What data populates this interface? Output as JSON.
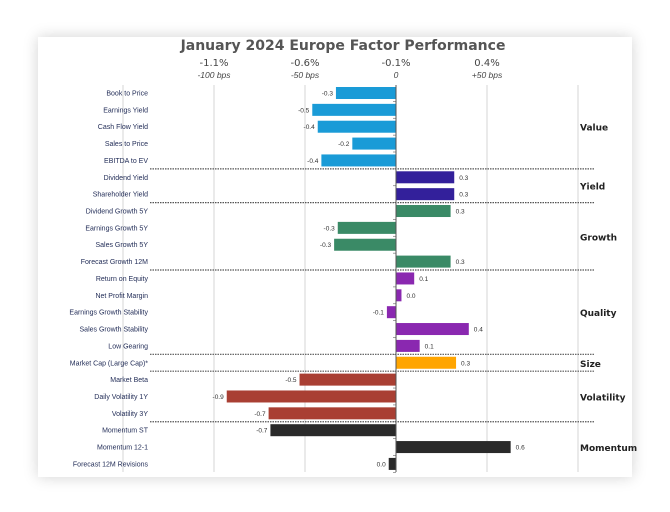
{
  "chart_data": {
    "type": "bar",
    "orientation": "horizontal",
    "title": "January 2024 Europe Factor Performance",
    "top_axis_ticks": [
      {
        "label": "-1.1%",
        "sublabel": "-100 bps",
        "value": -1.0
      },
      {
        "label": "-0.6%",
        "sublabel": "-50 bps",
        "value": -0.5
      },
      {
        "label": "-0.1%",
        "sublabel": "0",
        "value": 0
      },
      {
        "label": "0.4%",
        "sublabel": "+50 bps",
        "value": 0.5
      }
    ],
    "xlim": [
      -1.0,
      1.0
    ],
    "grid": true,
    "groups": [
      {
        "name": "Value",
        "color": "#1a9bd7",
        "rows": [
          {
            "label": "Book to Price",
            "value": -0.33,
            "value_label": "-0.3"
          },
          {
            "label": "Earnings Yield",
            "value": -0.46,
            "value_label": "-0.5"
          },
          {
            "label": "Cash Flow Yield",
            "value": -0.43,
            "value_label": "-0.4"
          },
          {
            "label": "Sales to Price",
            "value": -0.24,
            "value_label": "-0.2"
          },
          {
            "label": "EBITDA to EV",
            "value": -0.41,
            "value_label": "-0.4"
          }
        ]
      },
      {
        "name": "Yield",
        "color": "#33209b",
        "rows": [
          {
            "label": "Dividend Yield",
            "value": 0.32,
            "value_label": "0.3"
          },
          {
            "label": "Shareholder Yield",
            "value": 0.32,
            "value_label": "0.3"
          }
        ]
      },
      {
        "name": "Growth",
        "color": "#3a8a66",
        "rows": [
          {
            "label": "Dividend Growth 5Y",
            "value": 0.3,
            "value_label": "0.3"
          },
          {
            "label": "Earnings Growth 5Y",
            "value": -0.32,
            "value_label": "-0.3"
          },
          {
            "label": "Sales Growth 5Y",
            "value": -0.34,
            "value_label": "-0.3"
          },
          {
            "label": "Forecast Growth 12M",
            "value": 0.3,
            "value_label": "0.3"
          }
        ]
      },
      {
        "name": "Quality",
        "color": "#8a28b0",
        "rows": [
          {
            "label": "Return on Equity",
            "value": 0.1,
            "value_label": "0.1"
          },
          {
            "label": "Net Profit Margin",
            "value": 0.03,
            "value_label": "0.0"
          },
          {
            "label": "Earnings Growth Stability",
            "value": -0.05,
            "value_label": "-0.1"
          },
          {
            "label": "Sales Growth Stability",
            "value": 0.4,
            "value_label": "0.4"
          },
          {
            "label": "Low Gearing",
            "value": 0.13,
            "value_label": "0.1"
          }
        ]
      },
      {
        "name": "Size",
        "color": "#ffa500",
        "rows": [
          {
            "label": "Market Cap (Large Cap)*",
            "value": 0.33,
            "value_label": "0.3"
          }
        ]
      },
      {
        "name": "Volatility",
        "color": "#a93f33",
        "rows": [
          {
            "label": "Market Beta",
            "value": -0.53,
            "value_label": "-0.5"
          },
          {
            "label": "Daily Volatility 1Y",
            "value": -0.93,
            "value_label": "-0.9"
          },
          {
            "label": "Volatility 3Y",
            "value": -0.7,
            "value_label": "-0.7"
          }
        ]
      },
      {
        "name": "Momentum",
        "color": "#2a2a2a",
        "rows": [
          {
            "label": "Momentum ST",
            "value": -0.69,
            "value_label": "-0.7"
          },
          {
            "label": "Momentum 12-1",
            "value": 0.63,
            "value_label": "0.6"
          },
          {
            "label": "Forecast 12M Revisions",
            "value": -0.04,
            "value_label": "0.0"
          }
        ]
      }
    ]
  }
}
